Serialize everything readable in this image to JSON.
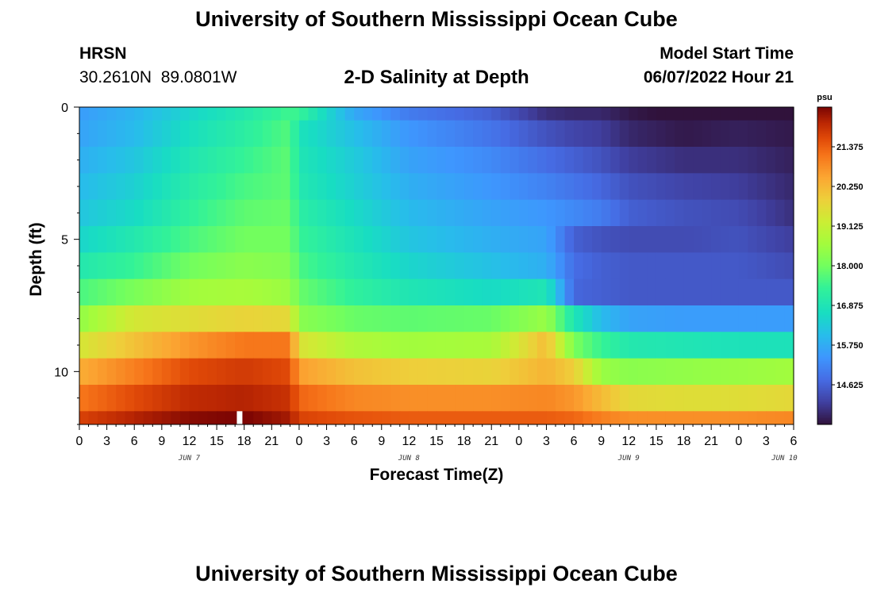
{
  "header": {
    "title": "University of Southern Mississippi Ocean Cube",
    "station": "HRSN",
    "coords": "30.2610N  89.0801W",
    "subtitle": "2-D Salinity at Depth",
    "start_label": "Model Start Time",
    "start_value": "06/07/2022 Hour 21"
  },
  "footer": {
    "title": "University of Southern Mississippi Ocean Cube"
  },
  "chart_data": {
    "type": "heatmap",
    "title": "2-D Salinity at Depth",
    "xlabel": "Forecast Time(Z)",
    "ylabel": "Depth (ft)",
    "x_tick_labels": [
      "0",
      "3",
      "6",
      "9",
      "12",
      "15",
      "18",
      "21",
      "0",
      "3",
      "6",
      "9",
      "12",
      "15",
      "18",
      "21",
      "0",
      "3",
      "6",
      "9",
      "12",
      "15",
      "18",
      "21",
      "0",
      "3",
      "6"
    ],
    "x_range_hours": [
      0,
      78
    ],
    "day_labels": [
      {
        "label": "JUN 7",
        "hour": 12
      },
      {
        "label": "JUN 8",
        "hour": 36
      },
      {
        "label": "JUN 9",
        "hour": 60
      },
      {
        "label": "JUN 10",
        "hour": 77
      }
    ],
    "y_tick_labels": [
      "0",
      "5",
      "10"
    ],
    "y_tick_values": [
      0,
      5,
      10
    ],
    "y_range_ft": [
      0,
      12
    ],
    "depth_layers": 12,
    "time_columns": 78,
    "colorbar": {
      "unit": "psu",
      "min": 13.5,
      "max": 22.5,
      "tick_values": [
        14.625,
        15.75,
        16.875,
        18.0,
        19.125,
        20.25,
        21.375
      ],
      "tick_labels": [
        "14.625",
        "15.750",
        "16.875",
        "18.000",
        "19.125",
        "20.250",
        "21.375"
      ]
    },
    "key_hours": [
      0,
      6,
      12,
      18,
      23,
      24,
      30,
      36,
      45,
      51,
      54,
      57,
      60,
      66,
      72,
      78
    ],
    "salinity_by_layer": [
      [
        15.5,
        15.9,
        16.5,
        17.0,
        17.5,
        17.4,
        15.7,
        15.0,
        14.6,
        13.9,
        13.8,
        13.8,
        13.6,
        13.4,
        13.5,
        13.5
      ],
      [
        15.6,
        16.0,
        16.7,
        17.2,
        17.7,
        16.8,
        16.1,
        15.4,
        14.9,
        14.4,
        14.2,
        14.1,
        13.8,
        13.6,
        13.7,
        13.6
      ],
      [
        15.8,
        16.2,
        16.9,
        17.4,
        17.8,
        16.9,
        16.3,
        15.6,
        15.2,
        14.8,
        14.6,
        14.4,
        14.1,
        13.9,
        13.9,
        13.7
      ],
      [
        16.0,
        16.4,
        17.1,
        17.6,
        17.8,
        17.0,
        16.4,
        15.8,
        15.4,
        15.1,
        14.9,
        14.7,
        14.4,
        14.2,
        14.1,
        13.8
      ],
      [
        16.2,
        16.6,
        17.3,
        17.8,
        17.9,
        17.2,
        16.6,
        16.0,
        15.6,
        15.4,
        15.2,
        15.0,
        14.6,
        14.4,
        14.3,
        13.9
      ],
      [
        16.5,
        17.0,
        17.6,
        18.0,
        18.0,
        17.4,
        16.8,
        16.2,
        15.8,
        15.6,
        14.6,
        14.4,
        14.3,
        14.3,
        14.4,
        14.1
      ],
      [
        17.0,
        17.4,
        18.0,
        18.3,
        18.2,
        17.6,
        17.0,
        16.5,
        16.1,
        15.8,
        14.8,
        14.6,
        14.5,
        14.5,
        14.5,
        14.3
      ],
      [
        17.6,
        18.1,
        18.6,
        18.7,
        18.5,
        17.9,
        17.3,
        16.9,
        16.6,
        16.9,
        14.7,
        14.6,
        14.5,
        14.5,
        14.5,
        14.5
      ],
      [
        18.4,
        19.4,
        19.6,
        19.8,
        19.7,
        18.3,
        17.9,
        17.8,
        17.9,
        18.5,
        16.9,
        16.0,
        15.6,
        15.5,
        15.5,
        15.5
      ],
      [
        19.4,
        20.1,
        20.7,
        21.1,
        21.1,
        19.5,
        18.8,
        18.6,
        18.7,
        20.2,
        18.1,
        17.4,
        17.0,
        16.9,
        16.8,
        16.8
      ],
      [
        20.4,
        21.0,
        21.6,
        21.8,
        21.6,
        20.6,
        20.1,
        19.9,
        19.8,
        20.3,
        19.9,
        18.5,
        18.3,
        18.4,
        18.5,
        18.6
      ],
      [
        21.1,
        21.6,
        22.0,
        22.1,
        21.9,
        21.3,
        20.9,
        20.8,
        20.8,
        20.9,
        20.7,
        20.2,
        19.7,
        19.6,
        19.6,
        19.7
      ],
      [
        21.7,
        22.1,
        22.4,
        22.5,
        22.2,
        21.7,
        21.5,
        21.4,
        21.4,
        21.4,
        21.3,
        21.0,
        20.8,
        20.8,
        20.8,
        20.9
      ]
    ],
    "marker": {
      "hour": 17.5,
      "depth_from_ft": 11.5,
      "depth_to_ft": 12
    }
  }
}
